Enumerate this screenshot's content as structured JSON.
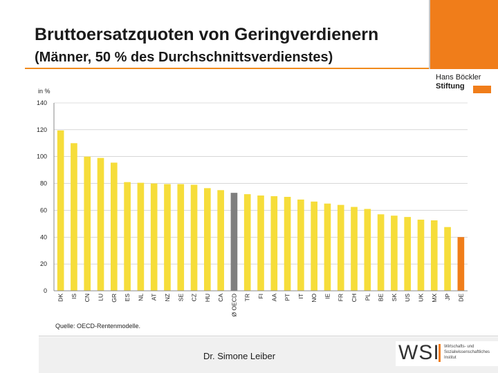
{
  "slide": {
    "title": "Bruttoersatzquoten von Geringverdienern",
    "subtitle": "(Männer, 50 % des Durchschnittsverdienstes)",
    "author": "Dr. Simone Leiber"
  },
  "logos": {
    "hans_boeckler_line1": "Hans Böckler",
    "hans_boeckler_line2": "Stiftung",
    "wsi_mark": "WSI",
    "wsi_line1": "Wirtschafts- und",
    "wsi_line2": "Sozialwissenschaftliches",
    "wsi_line3": "Institut"
  },
  "colors": {
    "accent": "#f07d1a",
    "bar_default": "#f6dd3a",
    "bar_oecd": "#7f7f7f",
    "bar_de": "#f07d1a",
    "grid": "#bfbfbf"
  },
  "chart_data": {
    "type": "bar",
    "ylabel": "in %",
    "source": "Quelle: OECD-Rentenmodelle.",
    "ylim": [
      0,
      140
    ],
    "yticks": [
      0,
      20,
      40,
      60,
      80,
      100,
      120,
      140
    ],
    "grid": true,
    "categories": [
      "DK",
      "IS",
      "CN",
      "LU",
      "GR",
      "ES",
      "NL",
      "AT",
      "NZ",
      "SE",
      "CZ",
      "HU",
      "CA",
      "Ø OECD",
      "TR",
      "FI",
      "AA",
      "PT",
      "IT",
      "NO",
      "IE",
      "FR",
      "CH",
      "PL",
      "BE",
      "SK",
      "US",
      "UK",
      "MX",
      "JP",
      "DE"
    ],
    "values": [
      119.5,
      110,
      100,
      99,
      95.5,
      81,
      80.5,
      80,
      79.5,
      79.5,
      79,
      76.5,
      75,
      73,
      72,
      71,
      70.5,
      70,
      68,
      66.5,
      65,
      64,
      62.5,
      61,
      57,
      56,
      55,
      53,
      52.5,
      47.5,
      40
    ],
    "highlight": {
      "Ø OECD": "bar_oecd",
      "DE": "bar_de"
    }
  }
}
